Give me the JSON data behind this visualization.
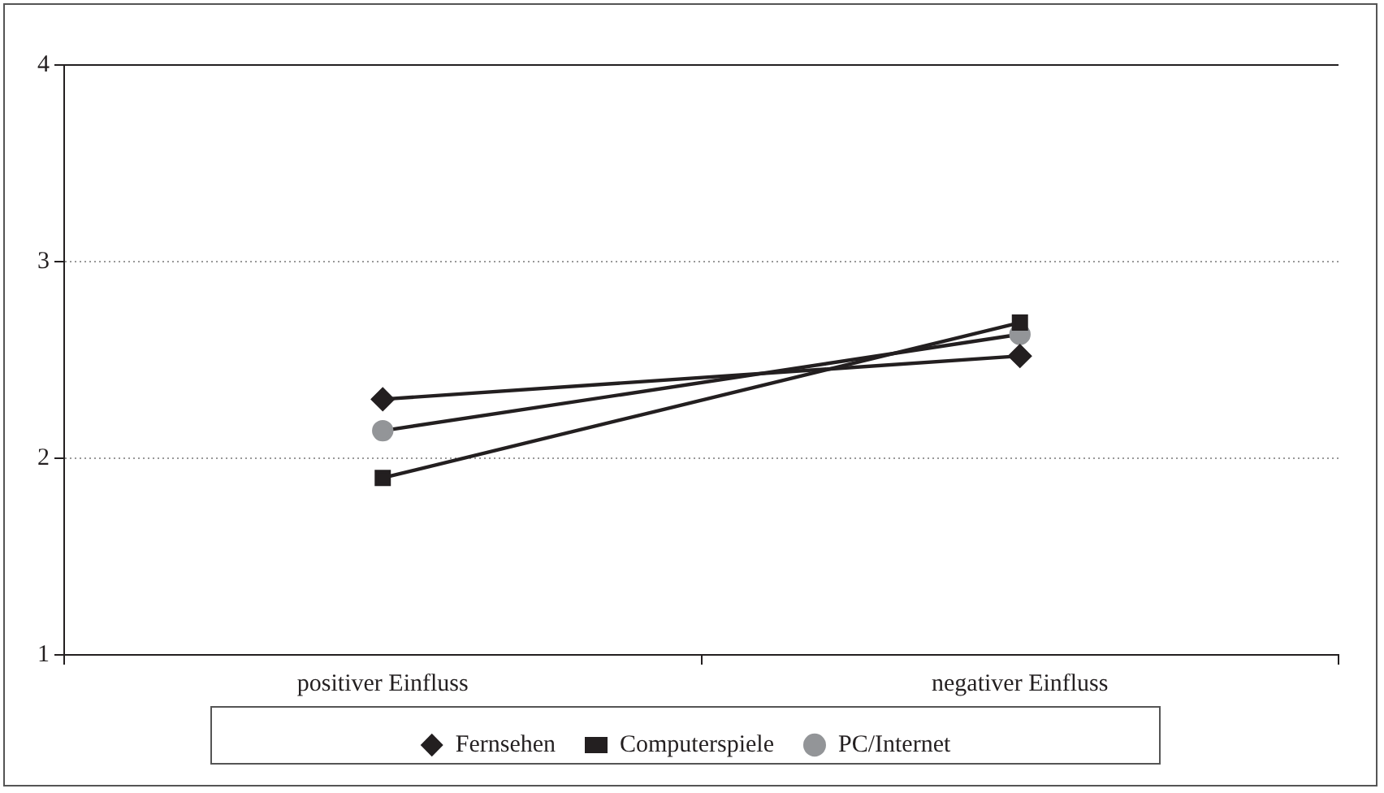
{
  "chart_data": {
    "type": "line",
    "categories": [
      "positiver Einfluss",
      "negativer Einfluss"
    ],
    "series": [
      {
        "name": "Fernsehen",
        "color": "#231f20",
        "values": [
          2.3,
          2.52
        ],
        "marker": "diamond"
      },
      {
        "name": "Computerspiele",
        "color": "#231f20",
        "values": [
          1.9,
          2.69
        ],
        "marker": "square"
      },
      {
        "name": "PC/Internet",
        "color": "#939598",
        "values": [
          2.14,
          2.63
        ],
        "marker": "circle"
      }
    ],
    "ylim": [
      1,
      4
    ],
    "yticks": [
      1,
      2,
      3,
      4
    ],
    "grid": "y",
    "legend": "bottom",
    "line_style": "solid"
  }
}
